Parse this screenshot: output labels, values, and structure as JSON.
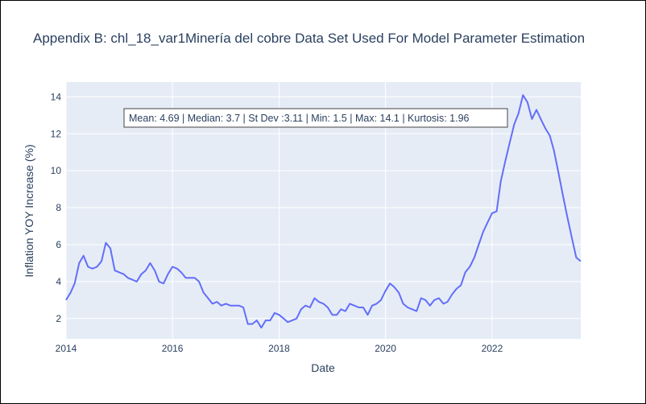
{
  "chart_data": {
    "type": "line",
    "title": "Appendix B: chl_18_var1Minería del cobre Data Set Used For Model Parameter Estimation",
    "xlabel": "Date",
    "ylabel": "Inflation YOY Increase (%)",
    "xlim": [
      "2014-01-01",
      "2023-09-01"
    ],
    "ylim": [
      0.9,
      14.8
    ],
    "x_ticks": [
      {
        "label": "2014",
        "value": "2014-01-01"
      },
      {
        "label": "2016",
        "value": "2016-01-01"
      },
      {
        "label": "2018",
        "value": "2018-01-01"
      },
      {
        "label": "2020",
        "value": "2020-01-01"
      },
      {
        "label": "2022",
        "value": "2022-01-01"
      }
    ],
    "y_ticks": [
      2,
      4,
      6,
      8,
      10,
      12,
      14
    ],
    "grid": true,
    "annotation": "Mean: 4.69 | Median: 3.7 | St Dev :3.11 | Min: 1.5 | Max: 14.1 | Kurtosis: 1.96",
    "colors": {
      "line": "#636efa",
      "plot_bg": "#e5ecf6",
      "grid": "#ffffff",
      "text": "#2a3f5f"
    },
    "series": [
      {
        "x": [
          "2014-01",
          "2014-02",
          "2014-03",
          "2014-04",
          "2014-05",
          "2014-06",
          "2014-07",
          "2014-08",
          "2014-09",
          "2014-10",
          "2014-11",
          "2014-12",
          "2015-01",
          "2015-02",
          "2015-03",
          "2015-04",
          "2015-05",
          "2015-06",
          "2015-07",
          "2015-08",
          "2015-09",
          "2015-10",
          "2015-11",
          "2015-12",
          "2016-01",
          "2016-02",
          "2016-03",
          "2016-04",
          "2016-05",
          "2016-06",
          "2016-07",
          "2016-08",
          "2016-09",
          "2016-10",
          "2016-11",
          "2016-12",
          "2017-01",
          "2017-02",
          "2017-03",
          "2017-04",
          "2017-05",
          "2017-06",
          "2017-07",
          "2017-08",
          "2017-09",
          "2017-10",
          "2017-11",
          "2017-12",
          "2018-01",
          "2018-02",
          "2018-03",
          "2018-04",
          "2018-05",
          "2018-06",
          "2018-07",
          "2018-08",
          "2018-09",
          "2018-10",
          "2018-11",
          "2018-12",
          "2019-01",
          "2019-02",
          "2019-03",
          "2019-04",
          "2019-05",
          "2019-06",
          "2019-07",
          "2019-08",
          "2019-09",
          "2019-10",
          "2019-11",
          "2019-12",
          "2020-01",
          "2020-02",
          "2020-03",
          "2020-04",
          "2020-05",
          "2020-06",
          "2020-07",
          "2020-08",
          "2020-09",
          "2020-10",
          "2020-11",
          "2020-12",
          "2021-01",
          "2021-02",
          "2021-03",
          "2021-04",
          "2021-05",
          "2021-06",
          "2021-07",
          "2021-08",
          "2021-09",
          "2021-10",
          "2021-11",
          "2021-12",
          "2022-01",
          "2022-02",
          "2022-03",
          "2022-04",
          "2022-05",
          "2022-06",
          "2022-07",
          "2022-08",
          "2022-09",
          "2022-10",
          "2022-11",
          "2022-12",
          "2023-01",
          "2023-02",
          "2023-03",
          "2023-04",
          "2023-05",
          "2023-06",
          "2023-07",
          "2023-08",
          "2023-09"
        ],
        "y": [
          3.0,
          3.4,
          3.9,
          5.0,
          5.4,
          4.8,
          4.7,
          4.8,
          5.1,
          6.1,
          5.8,
          4.6,
          4.5,
          4.4,
          4.2,
          4.1,
          4.0,
          4.4,
          4.6,
          5.0,
          4.6,
          4.0,
          3.9,
          4.4,
          4.8,
          4.7,
          4.5,
          4.2,
          4.2,
          4.2,
          4.0,
          3.4,
          3.1,
          2.8,
          2.9,
          2.7,
          2.8,
          2.7,
          2.7,
          2.7,
          2.6,
          1.7,
          1.7,
          1.9,
          1.5,
          1.9,
          1.9,
          2.3,
          2.2,
          2.0,
          1.8,
          1.9,
          2.0,
          2.5,
          2.7,
          2.6,
          3.1,
          2.9,
          2.8,
          2.6,
          2.2,
          2.2,
          2.5,
          2.4,
          2.8,
          2.7,
          2.6,
          2.6,
          2.2,
          2.7,
          2.8,
          3.0,
          3.5,
          3.9,
          3.7,
          3.4,
          2.8,
          2.6,
          2.5,
          2.4,
          3.1,
          3.0,
          2.7,
          3.0,
          3.1,
          2.8,
          2.9,
          3.3,
          3.6,
          3.8,
          4.5,
          4.8,
          5.3,
          6.0,
          6.7,
          7.2,
          7.7,
          7.8,
          9.4,
          10.5,
          11.5,
          12.5,
          13.1,
          14.1,
          13.7,
          12.8,
          13.3,
          12.8,
          12.3,
          11.9,
          11.1,
          9.9,
          8.7,
          7.5,
          6.4,
          5.3,
          5.1
        ]
      }
    ]
  }
}
